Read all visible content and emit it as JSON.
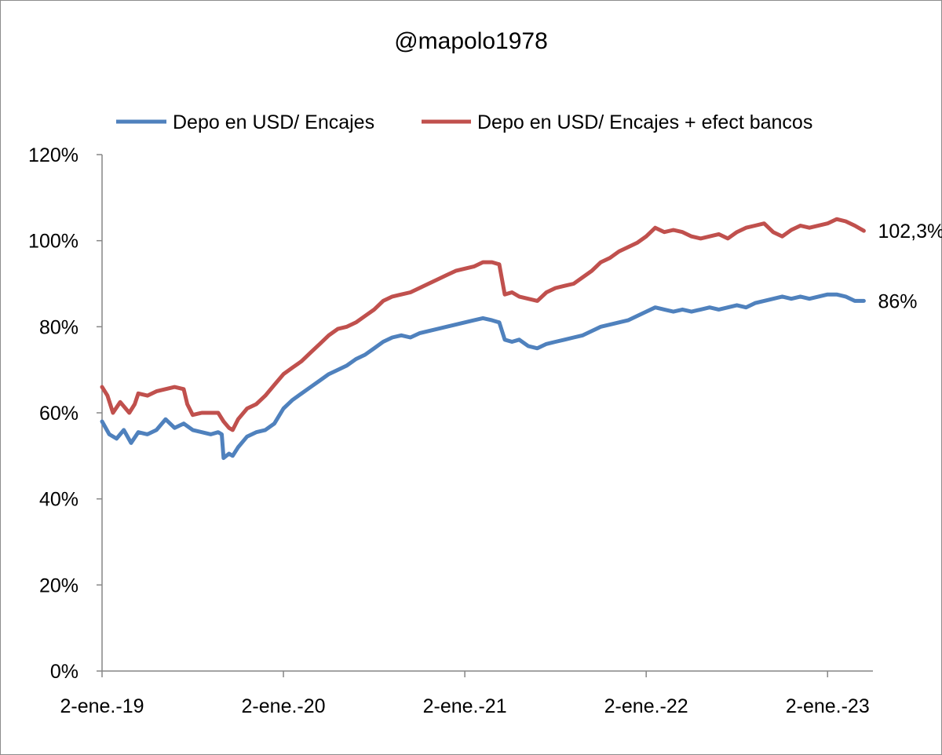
{
  "chart_data": {
    "type": "line",
    "title": "@mapolo1978",
    "xlabel": "",
    "ylabel": "",
    "ylim": [
      0,
      1.2
    ],
    "y_ticks": [
      0,
      0.2,
      0.4,
      0.6,
      0.8,
      1.0,
      1.2
    ],
    "y_tick_labels": [
      "0%",
      "20%",
      "40%",
      "60%",
      "80%",
      "100%",
      "120%"
    ],
    "x_range": [
      2019.0,
      2023.25
    ],
    "x_ticks": [
      2019,
      2020,
      2021,
      2022,
      2023
    ],
    "x_tick_labels": [
      "2-ene.-19",
      "2-ene.-20",
      "2-ene.-21",
      "2-ene.-22",
      "2-ene.-23"
    ],
    "legend_position": "top",
    "series": [
      {
        "name": "Depo en USD/ Encajes",
        "color": "#4f81bd",
        "end_label": "86%",
        "points": [
          [
            2019.0,
            0.58
          ],
          [
            2019.04,
            0.55
          ],
          [
            2019.08,
            0.54
          ],
          [
            2019.12,
            0.56
          ],
          [
            2019.16,
            0.53
          ],
          [
            2019.2,
            0.555
          ],
          [
            2019.25,
            0.55
          ],
          [
            2019.3,
            0.56
          ],
          [
            2019.35,
            0.585
          ],
          [
            2019.4,
            0.565
          ],
          [
            2019.45,
            0.575
          ],
          [
            2019.5,
            0.56
          ],
          [
            2019.55,
            0.555
          ],
          [
            2019.6,
            0.55
          ],
          [
            2019.64,
            0.555
          ],
          [
            2019.66,
            0.55
          ],
          [
            2019.67,
            0.495
          ],
          [
            2019.7,
            0.505
          ],
          [
            2019.72,
            0.5
          ],
          [
            2019.75,
            0.52
          ],
          [
            2019.8,
            0.545
          ],
          [
            2019.85,
            0.555
          ],
          [
            2019.9,
            0.56
          ],
          [
            2019.95,
            0.575
          ],
          [
            2020.0,
            0.61
          ],
          [
            2020.05,
            0.63
          ],
          [
            2020.1,
            0.645
          ],
          [
            2020.15,
            0.66
          ],
          [
            2020.2,
            0.675
          ],
          [
            2020.25,
            0.69
          ],
          [
            2020.3,
            0.7
          ],
          [
            2020.35,
            0.71
          ],
          [
            2020.4,
            0.725
          ],
          [
            2020.45,
            0.735
          ],
          [
            2020.5,
            0.75
          ],
          [
            2020.55,
            0.765
          ],
          [
            2020.6,
            0.775
          ],
          [
            2020.65,
            0.78
          ],
          [
            2020.7,
            0.775
          ],
          [
            2020.75,
            0.785
          ],
          [
            2020.8,
            0.79
          ],
          [
            2020.85,
            0.795
          ],
          [
            2020.9,
            0.8
          ],
          [
            2020.95,
            0.805
          ],
          [
            2021.0,
            0.81
          ],
          [
            2021.05,
            0.815
          ],
          [
            2021.1,
            0.82
          ],
          [
            2021.15,
            0.815
          ],
          [
            2021.19,
            0.81
          ],
          [
            2021.22,
            0.77
          ],
          [
            2021.26,
            0.765
          ],
          [
            2021.3,
            0.77
          ],
          [
            2021.35,
            0.755
          ],
          [
            2021.4,
            0.75
          ],
          [
            2021.45,
            0.76
          ],
          [
            2021.5,
            0.765
          ],
          [
            2021.55,
            0.77
          ],
          [
            2021.6,
            0.775
          ],
          [
            2021.65,
            0.78
          ],
          [
            2021.7,
            0.79
          ],
          [
            2021.75,
            0.8
          ],
          [
            2021.8,
            0.805
          ],
          [
            2021.85,
            0.81
          ],
          [
            2021.9,
            0.815
          ],
          [
            2021.95,
            0.825
          ],
          [
            2022.0,
            0.835
          ],
          [
            2022.05,
            0.845
          ],
          [
            2022.1,
            0.84
          ],
          [
            2022.15,
            0.835
          ],
          [
            2022.2,
            0.84
          ],
          [
            2022.25,
            0.835
          ],
          [
            2022.3,
            0.84
          ],
          [
            2022.35,
            0.845
          ],
          [
            2022.4,
            0.84
          ],
          [
            2022.45,
            0.845
          ],
          [
            2022.5,
            0.85
          ],
          [
            2022.55,
            0.845
          ],
          [
            2022.6,
            0.855
          ],
          [
            2022.65,
            0.86
          ],
          [
            2022.7,
            0.865
          ],
          [
            2022.75,
            0.87
          ],
          [
            2022.8,
            0.865
          ],
          [
            2022.85,
            0.87
          ],
          [
            2022.9,
            0.865
          ],
          [
            2022.95,
            0.87
          ],
          [
            2023.0,
            0.875
          ],
          [
            2023.05,
            0.875
          ],
          [
            2023.1,
            0.87
          ],
          [
            2023.15,
            0.86
          ],
          [
            2023.2,
            0.86
          ]
        ]
      },
      {
        "name": "Depo en USD/ Encajes + efect bancos",
        "color": "#c0504d",
        "end_label": "102,3%",
        "points": [
          [
            2019.0,
            0.66
          ],
          [
            2019.03,
            0.64
          ],
          [
            2019.06,
            0.6
          ],
          [
            2019.1,
            0.625
          ],
          [
            2019.15,
            0.6
          ],
          [
            2019.18,
            0.62
          ],
          [
            2019.2,
            0.645
          ],
          [
            2019.25,
            0.64
          ],
          [
            2019.3,
            0.65
          ],
          [
            2019.35,
            0.655
          ],
          [
            2019.4,
            0.66
          ],
          [
            2019.45,
            0.655
          ],
          [
            2019.47,
            0.62
          ],
          [
            2019.5,
            0.595
          ],
          [
            2019.55,
            0.6
          ],
          [
            2019.6,
            0.6
          ],
          [
            2019.64,
            0.6
          ],
          [
            2019.67,
            0.58
          ],
          [
            2019.7,
            0.565
          ],
          [
            2019.72,
            0.56
          ],
          [
            2019.75,
            0.585
          ],
          [
            2019.8,
            0.61
          ],
          [
            2019.85,
            0.62
          ],
          [
            2019.9,
            0.64
          ],
          [
            2019.95,
            0.665
          ],
          [
            2020.0,
            0.69
          ],
          [
            2020.05,
            0.705
          ],
          [
            2020.1,
            0.72
          ],
          [
            2020.15,
            0.74
          ],
          [
            2020.2,
            0.76
          ],
          [
            2020.25,
            0.78
          ],
          [
            2020.3,
            0.795
          ],
          [
            2020.35,
            0.8
          ],
          [
            2020.4,
            0.81
          ],
          [
            2020.45,
            0.825
          ],
          [
            2020.5,
            0.84
          ],
          [
            2020.55,
            0.86
          ],
          [
            2020.6,
            0.87
          ],
          [
            2020.65,
            0.875
          ],
          [
            2020.7,
            0.88
          ],
          [
            2020.75,
            0.89
          ],
          [
            2020.8,
            0.9
          ],
          [
            2020.85,
            0.91
          ],
          [
            2020.9,
            0.92
          ],
          [
            2020.95,
            0.93
          ],
          [
            2021.0,
            0.935
          ],
          [
            2021.05,
            0.94
          ],
          [
            2021.1,
            0.95
          ],
          [
            2021.15,
            0.95
          ],
          [
            2021.19,
            0.945
          ],
          [
            2021.22,
            0.875
          ],
          [
            2021.26,
            0.88
          ],
          [
            2021.3,
            0.87
          ],
          [
            2021.35,
            0.865
          ],
          [
            2021.4,
            0.86
          ],
          [
            2021.45,
            0.88
          ],
          [
            2021.5,
            0.89
          ],
          [
            2021.55,
            0.895
          ],
          [
            2021.6,
            0.9
          ],
          [
            2021.65,
            0.915
          ],
          [
            2021.7,
            0.93
          ],
          [
            2021.75,
            0.95
          ],
          [
            2021.8,
            0.96
          ],
          [
            2021.85,
            0.975
          ],
          [
            2021.9,
            0.985
          ],
          [
            2021.95,
            0.995
          ],
          [
            2022.0,
            1.01
          ],
          [
            2022.05,
            1.03
          ],
          [
            2022.1,
            1.02
          ],
          [
            2022.15,
            1.025
          ],
          [
            2022.2,
            1.02
          ],
          [
            2022.25,
            1.01
          ],
          [
            2022.3,
            1.005
          ],
          [
            2022.35,
            1.01
          ],
          [
            2022.4,
            1.015
          ],
          [
            2022.45,
            1.005
          ],
          [
            2022.5,
            1.02
          ],
          [
            2022.55,
            1.03
          ],
          [
            2022.6,
            1.035
          ],
          [
            2022.65,
            1.04
          ],
          [
            2022.7,
            1.02
          ],
          [
            2022.75,
            1.01
          ],
          [
            2022.8,
            1.025
          ],
          [
            2022.85,
            1.035
          ],
          [
            2022.9,
            1.03
          ],
          [
            2023.0,
            1.04
          ],
          [
            2023.05,
            1.05
          ],
          [
            2023.1,
            1.045
          ],
          [
            2023.15,
            1.035
          ],
          [
            2023.2,
            1.023
          ]
        ]
      }
    ]
  }
}
